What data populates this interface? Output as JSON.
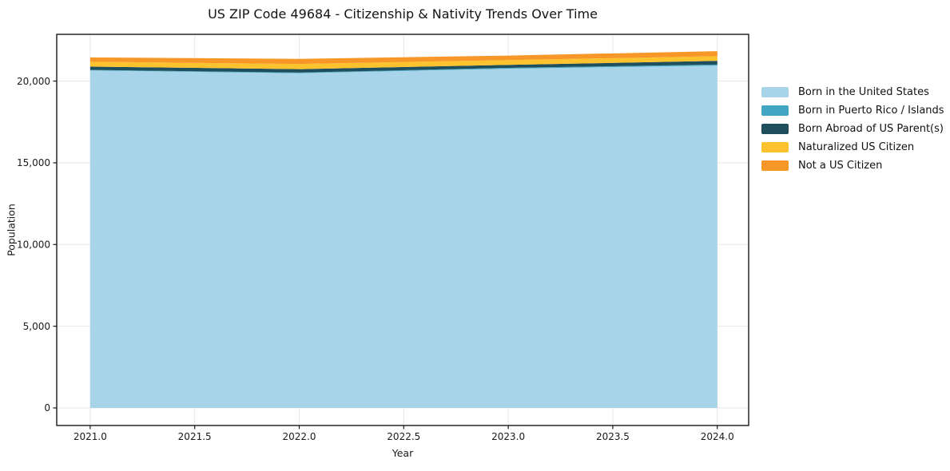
{
  "chart_data": {
    "type": "area",
    "stacked": true,
    "title": "US ZIP Code 49684 - Citizenship & Nativity Trends Over Time",
    "xlabel": "Year",
    "ylabel": "Population",
    "x": [
      2021,
      2022,
      2023,
      2024
    ],
    "series": [
      {
        "name": "Born in the United States",
        "color": "#a7d4e9",
        "values": [
          20650,
          20480,
          20760,
          20950
        ]
      },
      {
        "name": "Born in Puerto Rico / Islands",
        "color": "#42a6c2",
        "values": [
          30,
          40,
          50,
          60
        ]
      },
      {
        "name": "Born Abroad of US Parent(s)",
        "color": "#1f4e5c",
        "values": [
          200,
          210,
          180,
          230
        ]
      },
      {
        "name": "Naturalized US Citizen",
        "color": "#fcc32e",
        "values": [
          300,
          320,
          290,
          280
        ]
      },
      {
        "name": "Not a US Citizen",
        "color": "#f79727",
        "values": [
          270,
          310,
          280,
          310
        ]
      }
    ],
    "totals": [
      21450,
      21360,
      21560,
      21830
    ],
    "xticks": [
      2021.0,
      2021.5,
      2022.0,
      2022.5,
      2023.0,
      2023.5,
      2024.0
    ],
    "xtick_labels": [
      "2021.0",
      "2021.5",
      "2022.0",
      "2022.5",
      "2023.0",
      "2023.5",
      "2024.0"
    ],
    "yticks": [
      0,
      5000,
      10000,
      15000,
      20000
    ],
    "ytick_labels": [
      "0",
      "5,000",
      "10,000",
      "15,000",
      "20,000"
    ],
    "xlim": [
      2020.84,
      2024.15
    ],
    "ylim": [
      -1075,
      22860
    ],
    "grid": true,
    "grid_color": "#e8e8e8",
    "spine_color": "#1a1a1a",
    "background": "#ffffff",
    "legend_position": "right-top, frameless"
  }
}
